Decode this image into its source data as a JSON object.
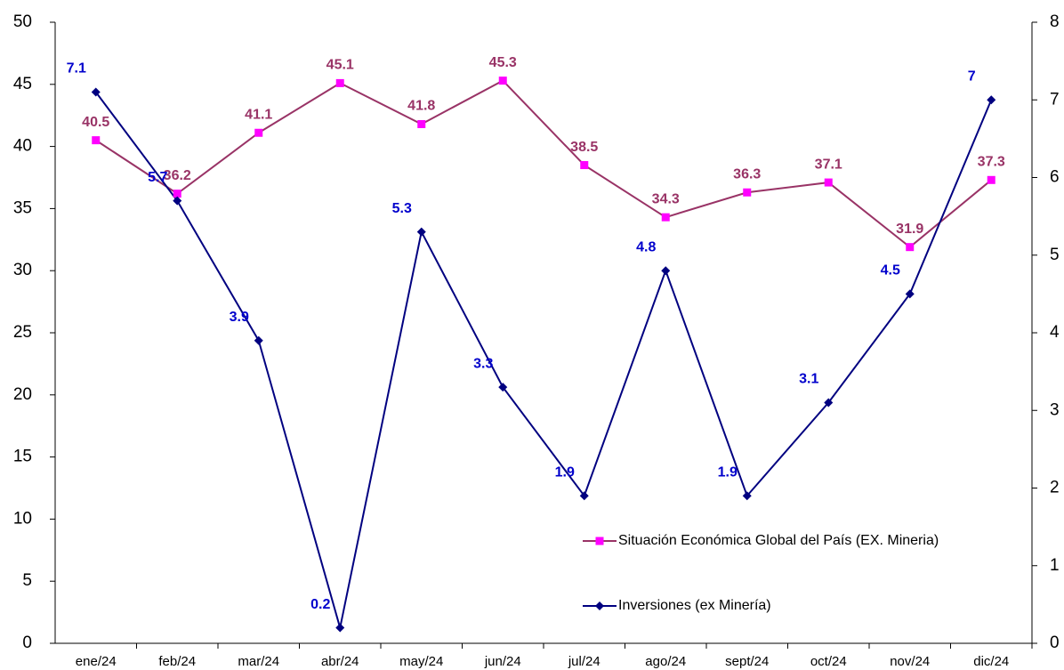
{
  "chart_data": {
    "type": "line",
    "categories": [
      "ene/24",
      "feb/24",
      "mar/24",
      "abr/24",
      "may/24",
      "jun/24",
      "jul/24",
      "ago/24",
      "sept/24",
      "oct/24",
      "nov/24",
      "dic/24"
    ],
    "series": [
      {
        "name": "Situación Económica Global del País (EX. Mineria)",
        "color": "#993366",
        "marker_color": "#ff00ff",
        "marker": "square",
        "values": [
          40.5,
          36.2,
          41.1,
          45.1,
          41.8,
          45.3,
          38.5,
          34.3,
          36.3,
          37.1,
          31.9,
          37.3
        ]
      },
      {
        "name": "Inversiones (ex Minería)",
        "color": "#000080",
        "label_color": "#0000cc",
        "marker": "diamond",
        "axis": "y2",
        "values": [
          7.1,
          5.7,
          3.9,
          0.2,
          5.3,
          3.3,
          1.9,
          4.8,
          1.9,
          3.1,
          4.5,
          7.0
        ]
      }
    ],
    "ylim": [
      0,
      50
    ],
    "yticks": [
      0,
      5,
      10,
      15,
      20,
      25,
      30,
      35,
      40,
      45,
      50
    ],
    "y2lim": [
      0,
      8
    ],
    "y2ticks": [
      0,
      1,
      2,
      3,
      4,
      5,
      6,
      7,
      8
    ],
    "grid": false,
    "legend": "lower right"
  }
}
